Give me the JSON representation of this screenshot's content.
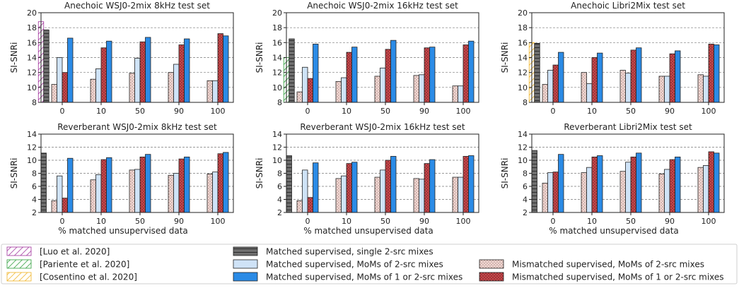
{
  "chart_data": {
    "type": "bar",
    "xlabel": "% matched unsupervised data",
    "ylabel": "SI-SNRi",
    "categories": [
      "0",
      "10",
      "50",
      "90",
      "100"
    ],
    "legend_placement": "bottom",
    "grid": true,
    "series_names": [
      "[Luo et al. 2020]",
      "[Pariente et al. 2020]",
      "[Cosentino et al. 2020]",
      "Matched supervised, single 2-src mixes",
      "Matched supervised, MoMs of 2-src mixes",
      "Matched supervised, MoMs of 1 or 2-src mixes",
      "Mismatched supervised, MoMs of 2-src mixes",
      "Mismatched supervised, MoMs of 1 or 2-src mixes"
    ],
    "colors": {
      "luo": "#a0329c",
      "pariente": "#2e9e3a",
      "cosentino": "#f0b323",
      "single": "#6f6f6f",
      "mom2": "#cfe3f7",
      "mom12": "#2b8be6",
      "mis2": "#f1d9d4",
      "mis12": "#c9474b"
    },
    "panels": [
      {
        "title": "Anechoic WSJ0-2mix 8kHz test set",
        "ylim": [
          8,
          20
        ],
        "yticks": [
          8,
          10,
          12,
          14,
          16,
          18,
          20
        ],
        "reference": {
          "key": "luo",
          "value": 18.8
        },
        "single": 17.7,
        "mis2": [
          10.4,
          11.1,
          11.9,
          12.0,
          10.9
        ],
        "mom2": [
          14.0,
          12.5,
          13.9,
          13.1,
          10.9
        ],
        "mis12": [
          12.0,
          15.3,
          16.1,
          15.7,
          17.2
        ],
        "mom12": [
          16.6,
          16.2,
          16.7,
          16.5,
          16.9
        ]
      },
      {
        "title": "Anechoic WSJ0-2mix 16kHz test set",
        "ylim": [
          8,
          20
        ],
        "yticks": [
          8,
          10,
          12,
          14,
          16,
          18,
          20
        ],
        "reference": {
          "key": "pariente",
          "value": 14.0
        },
        "single": 16.5,
        "mis2": [
          9.4,
          10.8,
          11.5,
          11.6,
          10.2
        ],
        "mom2": [
          12.7,
          11.3,
          12.6,
          11.7,
          10.2
        ],
        "mis12": [
          11.2,
          14.7,
          15.1,
          15.3,
          15.7
        ],
        "mom12": [
          15.8,
          15.4,
          16.3,
          15.4,
          16.2
        ]
      },
      {
        "title": "Anechoic Libri2Mix test set",
        "ylim": [
          8,
          20
        ],
        "yticks": [
          8,
          10,
          12,
          14,
          16,
          18,
          20
        ],
        "reference": {
          "key": "cosentino",
          "value": 16.0
        },
        "single": 15.9,
        "mis2": [
          10.4,
          12.0,
          12.3,
          11.5,
          11.7
        ],
        "mom2": [
          12.3,
          10.5,
          11.9,
          11.5,
          11.5
        ],
        "mis12": [
          13.0,
          14.0,
          15.0,
          14.5,
          15.8
        ],
        "mom12": [
          14.7,
          14.6,
          15.3,
          14.9,
          15.7
        ]
      },
      {
        "title": "Reverberant WSJ0-2mix 8kHz test set",
        "ylim": [
          2,
          14
        ],
        "yticks": [
          2,
          4,
          6,
          8,
          10,
          12,
          14
        ],
        "reference": null,
        "single": 11.1,
        "mis2": [
          3.8,
          7.0,
          8.5,
          7.7,
          7.9
        ],
        "mom2": [
          7.6,
          7.8,
          8.6,
          8.0,
          8.2
        ],
        "mis12": [
          4.2,
          10.1,
          10.5,
          10.2,
          11.0
        ],
        "mom12": [
          10.3,
          10.4,
          10.9,
          10.5,
          11.2
        ]
      },
      {
        "title": "Reverberant WSJ0-2mix 16kHz test set",
        "ylim": [
          2,
          14
        ],
        "yticks": [
          2,
          4,
          6,
          8,
          10,
          12,
          14
        ],
        "reference": null,
        "single": 10.7,
        "mis2": [
          3.8,
          7.2,
          7.4,
          7.2,
          7.4
        ],
        "mom2": [
          8.5,
          7.6,
          8.5,
          7.1,
          7.4
        ],
        "mis12": [
          4.3,
          9.5,
          10.0,
          9.5,
          10.6
        ],
        "mom12": [
          9.6,
          9.7,
          10.6,
          10.1,
          10.7
        ]
      },
      {
        "title": "Reverberant Libri2Mix test set",
        "ylim": [
          2,
          14
        ],
        "yticks": [
          2,
          4,
          6,
          8,
          10,
          12,
          14
        ],
        "reference": null,
        "single": 11.5,
        "mis2": [
          6.5,
          8.1,
          8.3,
          7.9,
          8.9
        ],
        "mom2": [
          8.1,
          8.9,
          9.7,
          8.6,
          9.2
        ],
        "mis12": [
          8.2,
          10.5,
          10.5,
          10.1,
          11.3
        ],
        "mom12": [
          10.9,
          10.7,
          11.1,
          10.5,
          11.1
        ]
      }
    ]
  },
  "legend": [
    {
      "key": "luo",
      "label": "[Luo et al. 2020]"
    },
    {
      "key": "pariente",
      "label": "[Pariente et al. 2020]"
    },
    {
      "key": "cosentino",
      "label": "[Cosentino et al. 2020]"
    },
    {
      "key": "single",
      "label": "Matched supervised, single 2-src mixes"
    },
    {
      "key": "mom2",
      "label": "Matched supervised, MoMs of 2-src mixes"
    },
    {
      "key": "mom12",
      "label": "Matched supervised, MoMs of 1 or 2-src mixes"
    },
    {
      "key": "empty",
      "label": ""
    },
    {
      "key": "mis2",
      "label": "Mismatched supervised, MoMs of 2-src mixes"
    },
    {
      "key": "mis12",
      "label": "Mismatched supervised, MoMs of 1 or 2-src mixes"
    }
  ]
}
